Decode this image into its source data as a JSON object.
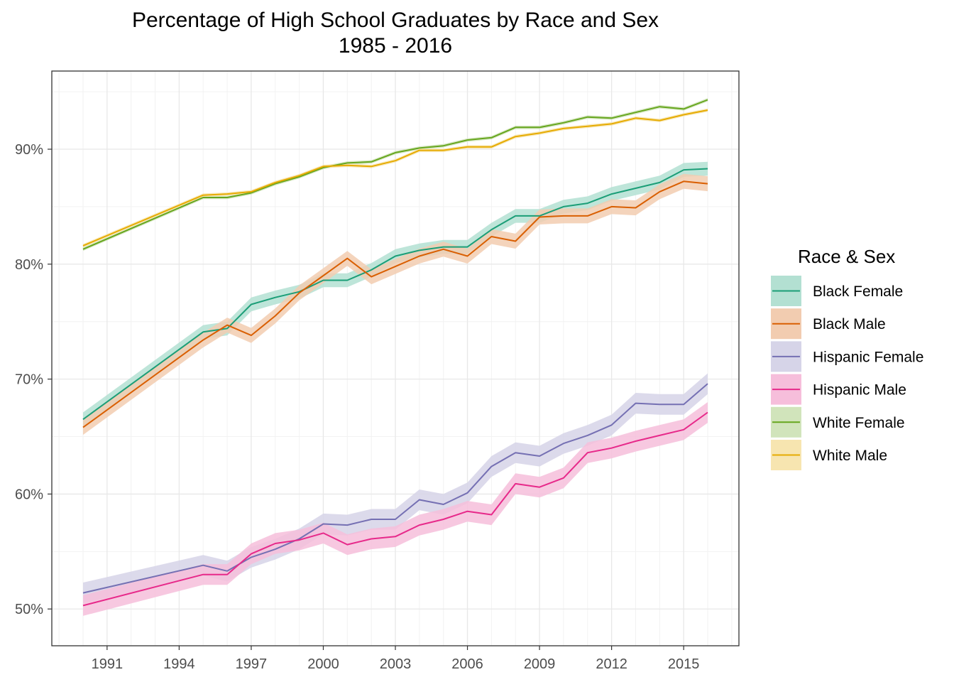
{
  "chart_data": {
    "type": "line",
    "title": "Percentage of High School Graduates by Race and Sex",
    "subtitle": "1985 - 2016",
    "xlabel": "",
    "ylabel": "",
    "xlim": [
      1988.7,
      2017.3
    ],
    "ylim": [
      46.8,
      96.8
    ],
    "x_ticks": [
      1991,
      1994,
      1997,
      2000,
      2003,
      2006,
      2009,
      2012,
      2015
    ],
    "y_ticks": [
      50,
      60,
      70,
      80,
      90
    ],
    "y_tick_labels": [
      "50%",
      "60%",
      "70%",
      "80%",
      "90%"
    ],
    "grid": true,
    "legend_title": "Race & Sex",
    "legend_position": "right",
    "x": [
      1990,
      1995,
      1996,
      1997,
      1998,
      1999,
      2000,
      2001,
      2002,
      2003,
      2004,
      2005,
      2006,
      2007,
      2008,
      2009,
      2010,
      2011,
      2012,
      2013,
      2014,
      2015,
      2016
    ],
    "series": [
      {
        "name": "Black Female",
        "color": "#1B9E77",
        "band_color": "#B3E0D2",
        "band": 0.6,
        "values": [
          66.5,
          74.1,
          74.4,
          76.5,
          77.1,
          77.6,
          78.6,
          78.6,
          79.5,
          80.7,
          81.2,
          81.5,
          81.5,
          83.0,
          84.2,
          84.2,
          85.0,
          85.3,
          86.1,
          86.6,
          87.1,
          88.2,
          88.3
        ]
      },
      {
        "name": "Black Male",
        "color": "#D95F02",
        "band_color": "#F2CCB0",
        "band": 0.65,
        "values": [
          65.8,
          73.4,
          74.7,
          73.8,
          75.5,
          77.5,
          79.0,
          80.5,
          78.9,
          79.8,
          80.7,
          81.3,
          80.7,
          82.4,
          82.0,
          84.1,
          84.2,
          84.2,
          85.0,
          84.9,
          86.3,
          87.2,
          87.0
        ]
      },
      {
        "name": "Hispanic Female",
        "color": "#7570B3",
        "band_color": "#D6D4E8",
        "band": 0.9,
        "values": [
          51.4,
          53.8,
          53.3,
          54.5,
          55.2,
          56.1,
          57.4,
          57.3,
          57.8,
          57.8,
          59.5,
          59.1,
          60.1,
          62.4,
          63.6,
          63.3,
          64.4,
          65.1,
          66.0,
          67.9,
          67.8,
          67.8,
          69.6
        ]
      },
      {
        "name": "Hispanic Male",
        "color": "#E7298A",
        "band_color": "#F6BEDB",
        "band": 0.9,
        "values": [
          50.3,
          53.0,
          53.0,
          54.8,
          55.7,
          56.0,
          56.6,
          55.6,
          56.1,
          56.3,
          57.3,
          57.8,
          58.5,
          58.2,
          60.9,
          60.6,
          61.4,
          63.6,
          64.0,
          64.6,
          65.1,
          65.6,
          67.1
        ]
      },
      {
        "name": "White Female",
        "color": "#66A61E",
        "band_color": "#D1E4BB",
        "band": 0.15,
        "values": [
          81.3,
          85.8,
          85.8,
          86.2,
          87.0,
          87.6,
          88.4,
          88.8,
          88.9,
          89.7,
          90.1,
          90.3,
          90.8,
          91.0,
          91.9,
          91.9,
          92.3,
          92.8,
          92.7,
          93.2,
          93.7,
          93.5,
          94.3
        ]
      },
      {
        "name": "White Male",
        "color": "#E6AB02",
        "band_color": "#F7E5B0",
        "band": 0.15,
        "values": [
          81.6,
          86.0,
          86.1,
          86.3,
          87.1,
          87.7,
          88.5,
          88.6,
          88.5,
          89.0,
          89.9,
          89.9,
          90.2,
          90.2,
          91.1,
          91.4,
          91.8,
          92.0,
          92.2,
          92.7,
          92.5,
          93.0,
          93.4
        ]
      }
    ]
  }
}
